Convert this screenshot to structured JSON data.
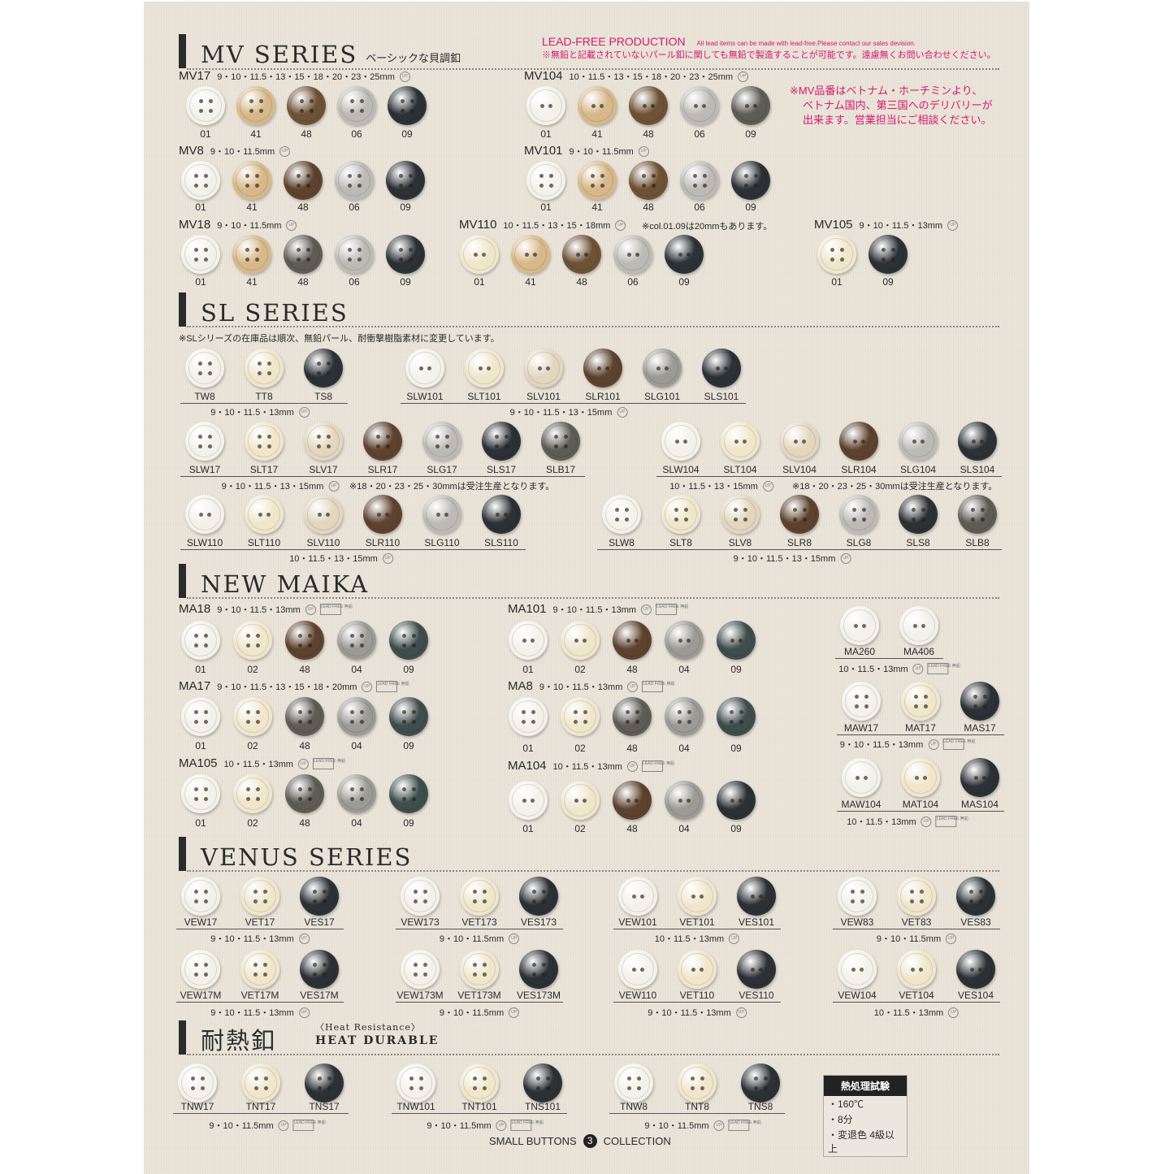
{
  "tone_colors": {
    "white": "#f4f1ea",
    "cream": "#efe6cc",
    "beige": "#e3d6bf",
    "gold": "#d6b88a",
    "bronze": "#6e5236",
    "silver": "#bdbab5",
    "grey": "#9c9a95",
    "smoke": "#5f5b55",
    "black": "#2c3136",
    "teal": "#3f4e4c",
    "brown": "#5d432f"
  },
  "accent_pink": "#d6186f",
  "sections": [
    {
      "name": "MV SERIES",
      "sub": "ベーシックな貝調釦"
    },
    {
      "name": "SL SERIES",
      "sub": ""
    },
    {
      "name": "NEW MAIKA",
      "sub": ""
    },
    {
      "name": "VENUS SERIES",
      "sub": ""
    },
    {
      "name": "耐熱釦",
      "sub": ""
    }
  ],
  "heat_subtitle": {
    "line1": "〈Heat Resistance〉",
    "line2": "HEAT DURABLE"
  },
  "lead_free": {
    "title": "LEAD-FREE PRODUCTION",
    "english": "All lead items can be made with lead-free.Please contact our sales devision.",
    "japanese": "※無鉛と記載されていないパール釦に関しても無鉛で製造することが可能です。遠慮無くお問い合わせください。"
  },
  "mv_notice": [
    "※MV品番はベトナム・ホーチミンより、",
    "ベトナム国内、第三国へのデリバリーが",
    "出来ます。営業担当にご相談ください。"
  ],
  "sl_notice": "※SLシリーズの在庫品は順次、無鉛パール、耐衝撃樹脂素材に変更しています。",
  "badges": {
    "up": "UP",
    "lead_free": "LEAD FREE 無鉛"
  },
  "groups": [
    {
      "code": "MV17",
      "sizes": "9・10・11.5・13・15・18・20・23・25mm",
      "up": true,
      "holes": 4,
      "codes": [
        "01",
        "41",
        "48",
        "06",
        "09"
      ],
      "tones": [
        "white",
        "gold",
        "bronze",
        "silver",
        "black"
      ]
    },
    {
      "code": "MV104",
      "sizes": "10・11.5・13・15・18・20・23・25mm",
      "up": true,
      "holes": 2,
      "codes": [
        "01",
        "41",
        "48",
        "06",
        "09"
      ],
      "tones": [
        "white",
        "gold",
        "bronze",
        "silver",
        "smoke"
      ]
    },
    {
      "code": "MV8",
      "sizes": "9・10・11.5mm",
      "up": true,
      "holes": 4,
      "codes": [
        "01",
        "41",
        "48",
        "06",
        "09"
      ],
      "tones": [
        "white",
        "gold",
        "brown",
        "silver",
        "black"
      ]
    },
    {
      "code": "MV101",
      "sizes": "9・10・11.5mm",
      "up": true,
      "holes": 4,
      "codes": [
        "01",
        "41",
        "48",
        "06",
        "09"
      ],
      "tones": [
        "white",
        "gold",
        "bronze",
        "silver",
        "black"
      ]
    },
    {
      "code": "MV18",
      "sizes": "9・10・11.5mm",
      "up": true,
      "holes": 4,
      "codes": [
        "01",
        "41",
        "48",
        "06",
        "09"
      ],
      "tones": [
        "white",
        "gold",
        "smoke",
        "silver",
        "black"
      ]
    },
    {
      "code": "MV110",
      "sizes": "10・11.5・13・15・18mm",
      "up": true,
      "holes": 2,
      "note": "※col.01.09は20mmもあります。",
      "codes": [
        "01",
        "41",
        "48",
        "06",
        "09"
      ],
      "tones": [
        "cream",
        "gold",
        "bronze",
        "silver",
        "black"
      ]
    },
    {
      "code": "MV105",
      "sizes": "9・10・11.5・13mm",
      "up": true,
      "holes": 4,
      "codes": [
        "01",
        "09"
      ],
      "tones": [
        "cream",
        "black"
      ]
    },
    {
      "sizes": "9・10・11.5・13mm",
      "up": true,
      "holes": 4,
      "codes": [
        "TW8",
        "TT8",
        "TS8"
      ],
      "tones": [
        "white",
        "cream",
        "black"
      ]
    },
    {
      "sizes": "9・10・11.5・13・15mm",
      "up": true,
      "holes": 2,
      "codes": [
        "SLW101",
        "SLT101",
        "SLV101",
        "SLR101",
        "SLG101",
        "SLS101"
      ],
      "tones": [
        "white",
        "cream",
        "beige",
        "brown",
        "grey",
        "black"
      ]
    },
    {
      "sizes": "9・10・11.5・13・15mm",
      "up": true,
      "holes": 4,
      "note": "※18・20・23・25・30mmは受注生産となります。",
      "codes": [
        "SLW17",
        "SLT17",
        "SLV17",
        "SLR17",
        "SLG17",
        "SLS17",
        "SLB17"
      ],
      "tones": [
        "white",
        "cream",
        "beige",
        "brown",
        "silver",
        "black",
        "smoke"
      ]
    },
    {
      "sizes": "10・11.5・13・15mm",
      "up": true,
      "holes": 2,
      "note": "※18・20・23・25・30mmは受注生産となります。",
      "codes": [
        "SLW104",
        "SLT104",
        "SLV104",
        "SLR104",
        "SLG104",
        "SLS104"
      ],
      "tones": [
        "white",
        "cream",
        "beige",
        "brown",
        "silver",
        "black"
      ]
    },
    {
      "sizes": "10・11.5・13・15mm",
      "up": true,
      "holes": 2,
      "codes": [
        "SLW110",
        "SLT110",
        "SLV110",
        "SLR110",
        "SLG110",
        "SLS110"
      ],
      "tones": [
        "white",
        "cream",
        "beige",
        "brown",
        "silver",
        "black"
      ]
    },
    {
      "sizes": "9・10・11.5・13・15mm",
      "up": true,
      "holes": 4,
      "codes": [
        "SLW8",
        "SLT8",
        "SLV8",
        "SLR8",
        "SLG8",
        "SLS8",
        "SLB8"
      ],
      "tones": [
        "white",
        "cream",
        "beige",
        "brown",
        "silver",
        "black",
        "smoke"
      ]
    },
    {
      "code": "MA18",
      "sizes": "9・10・11.5・13mm",
      "up": true,
      "lf": true,
      "holes": 4,
      "codes": [
        "01",
        "02",
        "48",
        "04",
        "09"
      ],
      "tones": [
        "white",
        "cream",
        "brown",
        "grey",
        "teal"
      ]
    },
    {
      "code": "MA101",
      "sizes": "9・10・11.5・13mm",
      "up": true,
      "lf": true,
      "holes": 2,
      "codes": [
        "01",
        "02",
        "48",
        "04",
        "09"
      ],
      "tones": [
        "white",
        "cream",
        "brown",
        "grey",
        "teal"
      ]
    },
    {
      "code": "MA17",
      "sizes": "9・10・11.5・13・15・18・20mm",
      "up": true,
      "lf": true,
      "holes": 4,
      "codes": [
        "01",
        "02",
        "48",
        "04",
        "09"
      ],
      "tones": [
        "white",
        "cream",
        "smoke",
        "grey",
        "teal"
      ]
    },
    {
      "code": "MA8",
      "sizes": "9・10・11.5・13mm",
      "up": true,
      "lf": true,
      "holes": 4,
      "codes": [
        "01",
        "02",
        "48",
        "04",
        "09"
      ],
      "tones": [
        "white",
        "cream",
        "smoke",
        "grey",
        "teal"
      ]
    },
    {
      "code": "MA105",
      "sizes": "10・11.5・13mm",
      "up": true,
      "lf": true,
      "holes": 4,
      "codes": [
        "01",
        "02",
        "48",
        "04",
        "09"
      ],
      "tones": [
        "white",
        "cream",
        "smoke",
        "grey",
        "teal"
      ]
    },
    {
      "code": "MA104",
      "sizes": "10・11.5・13mm",
      "up": true,
      "lf": true,
      "holes": 2,
      "codes": [
        "01",
        "02",
        "48",
        "04",
        "09"
      ],
      "tones": [
        "white",
        "cream",
        "brown",
        "grey",
        "black"
      ]
    },
    {
      "sizes": "10・11.5・13mm",
      "up": true,
      "lf": true,
      "holes": 2,
      "codes": [
        "MA260",
        "MA406"
      ],
      "tones": [
        "white",
        "white"
      ]
    },
    {
      "sizes": "9・10・11.5・13mm",
      "up": true,
      "lf": true,
      "holes": 4,
      "codes": [
        "MAW17",
        "MAT17",
        "MAS17"
      ],
      "tones": [
        "white",
        "cream",
        "black"
      ]
    },
    {
      "sizes": "10・11.5・13mm",
      "up": true,
      "lf": true,
      "holes": 2,
      "codes": [
        "MAW104",
        "MAT104",
        "MAS104"
      ],
      "tones": [
        "white",
        "cream",
        "black"
      ]
    },
    {
      "sizes": "9・10・11.5・13mm",
      "up": true,
      "holes": 4,
      "codes": [
        "VEW17",
        "VET17",
        "VES17"
      ],
      "tones": [
        "white",
        "cream",
        "black"
      ]
    },
    {
      "sizes": "9・10・11.5mm",
      "up": true,
      "holes": 4,
      "codes": [
        "VEW173",
        "VET173",
        "VES173"
      ],
      "tones": [
        "white",
        "cream",
        "black"
      ]
    },
    {
      "sizes": "10・11.5・13mm",
      "up": true,
      "holes": 2,
      "codes": [
        "VEW101",
        "VET101",
        "VES101"
      ],
      "tones": [
        "white",
        "cream",
        "black"
      ]
    },
    {
      "sizes": "9・10・11.5mm",
      "up": true,
      "holes": 4,
      "codes": [
        "VEW83",
        "VET83",
        "VES83"
      ],
      "tones": [
        "white",
        "cream",
        "black"
      ]
    },
    {
      "sizes": "9・10・11.5・13mm",
      "up": true,
      "holes": 4,
      "codes": [
        "VEW17M",
        "VET17M",
        "VES17M"
      ],
      "tones": [
        "white",
        "cream",
        "black"
      ]
    },
    {
      "sizes": "9・10・11.5mm",
      "up": true,
      "holes": 4,
      "codes": [
        "VEW173M",
        "VET173M",
        "VES173M"
      ],
      "tones": [
        "white",
        "cream",
        "black"
      ]
    },
    {
      "sizes": "9・10・11.5・13mm",
      "up": true,
      "holes": 2,
      "codes": [
        "VEW110",
        "VET110",
        "VES110"
      ],
      "tones": [
        "white",
        "cream",
        "black"
      ]
    },
    {
      "sizes": "10・11.5・13mm",
      "up": true,
      "holes": 2,
      "codes": [
        "VEW104",
        "VET104",
        "VES104"
      ],
      "tones": [
        "white",
        "cream",
        "black"
      ]
    },
    {
      "sizes": "9・10・11.5mm",
      "up": true,
      "lf": true,
      "holes": 4,
      "codes": [
        "TNW17",
        "TNT17",
        "TNS17"
      ],
      "tones": [
        "white",
        "cream",
        "black"
      ]
    },
    {
      "sizes": "9・10・11.5mm",
      "up": true,
      "lf": true,
      "holes": 4,
      "codes": [
        "TNW101",
        "TNT101",
        "TNS101"
      ],
      "tones": [
        "white",
        "cream",
        "black"
      ]
    },
    {
      "sizes": "9・10・11.5mm",
      "up": true,
      "lf": true,
      "holes": 4,
      "codes": [
        "TNW8",
        "TNT8",
        "TNS8"
      ],
      "tones": [
        "white",
        "cream",
        "black"
      ]
    }
  ],
  "heat_test": {
    "title": "熱処理試験",
    "items": [
      "・160℃",
      "・8分",
      "・変退色 4級以上"
    ]
  },
  "footer": {
    "left": "SMALL BUTTONS",
    "number": "3",
    "right": "COLLECTION"
  }
}
